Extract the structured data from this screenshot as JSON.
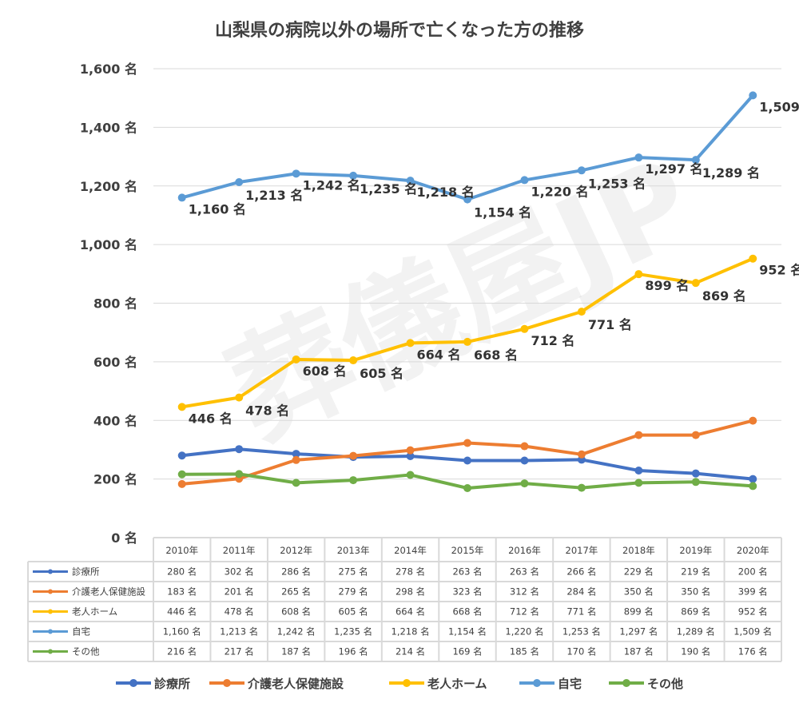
{
  "chart_data": {
    "type": "line",
    "title": "山梨県の病院以外の場所で亡くなった方の推移",
    "watermark": "葬儀屋JP",
    "categories": [
      "2010年",
      "2011年",
      "2012年",
      "2013年",
      "2014年",
      "2015年",
      "2016年",
      "2017年",
      "2018年",
      "2019年",
      "2020年"
    ],
    "unit": "名",
    "ylim": [
      0,
      1600
    ],
    "yticks": [
      0,
      200,
      400,
      600,
      800,
      1000,
      1200,
      1400,
      1600
    ],
    "ytick_labels": [
      "0 名",
      "200 名",
      "400 名",
      "600 名",
      "800 名",
      "1,000 名",
      "1,200 名",
      "1,400 名",
      "1,600 名"
    ],
    "grid": true,
    "legend_position": "bottom",
    "data_table": true,
    "series": [
      {
        "name": "診療所",
        "color": "#4472C4",
        "values": [
          280,
          302,
          286,
          275,
          278,
          263,
          263,
          266,
          229,
          219,
          200
        ],
        "labels": [
          "280 名",
          "302 名",
          "286 名",
          "275 名",
          "278 名",
          "263 名",
          "263 名",
          "266 名",
          "229 名",
          "219 名",
          "200 名"
        ],
        "show_data_labels": false
      },
      {
        "name": "介護老人保健施設",
        "color": "#ED7D31",
        "values": [
          183,
          201,
          265,
          279,
          298,
          323,
          312,
          284,
          350,
          350,
          399
        ],
        "labels": [
          "183 名",
          "201 名",
          "265 名",
          "279 名",
          "298 名",
          "323 名",
          "312 名",
          "284 名",
          "350 名",
          "350 名",
          "399 名"
        ],
        "show_data_labels": false
      },
      {
        "name": "老人ホーム",
        "color": "#FFC000",
        "values": [
          446,
          478,
          608,
          605,
          664,
          668,
          712,
          771,
          899,
          869,
          952
        ],
        "labels": [
          "446 名",
          "478 名",
          "608 名",
          "605 名",
          "664 名",
          "668 名",
          "712 名",
          "771 名",
          "899 名",
          "869 名",
          "952 名"
        ],
        "show_data_labels": true
      },
      {
        "name": "自宅",
        "color": "#5B9BD5",
        "values": [
          1160,
          1213,
          1242,
          1235,
          1218,
          1154,
          1220,
          1253,
          1297,
          1289,
          1509
        ],
        "labels": [
          "1,160 名",
          "1,213 名",
          "1,242 名",
          "1,235 名",
          "1,218 名",
          "1,154 名",
          "1,220 名",
          "1,253 名",
          "1,297 名",
          "1,289 名",
          "1,509 名"
        ],
        "show_data_labels": true
      },
      {
        "name": "その他",
        "color": "#70AD47",
        "values": [
          216,
          217,
          187,
          196,
          214,
          169,
          185,
          170,
          187,
          190,
          176
        ],
        "labels": [
          "216 名",
          "217 名",
          "187 名",
          "196 名",
          "214 名",
          "169 名",
          "185 名",
          "170 名",
          "187 名",
          "190 名",
          "176 名"
        ],
        "show_data_labels": false
      }
    ]
  }
}
